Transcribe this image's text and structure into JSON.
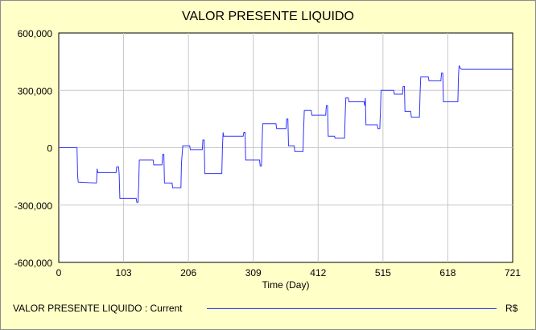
{
  "chart_data": {
    "type": "line",
    "title": "VALOR PRESENTE LIQUIDO",
    "xlabel": "Time (Day)",
    "ylabel": "",
    "xlim": [
      0,
      721
    ],
    "ylim": [
      -600000,
      600000
    ],
    "x_ticks": [
      0,
      103,
      206,
      309,
      412,
      515,
      618,
      721
    ],
    "y_ticks": [
      -600000,
      -300000,
      0,
      300000,
      600000
    ],
    "x_tick_labels": [
      "0",
      "103",
      "206",
      "309",
      "412",
      "515",
      "618",
      "721"
    ],
    "y_tick_labels": [
      "-600,000",
      "-300,000",
      "0",
      "300,000",
      "600,000"
    ],
    "grid": true,
    "legend_position": "bottom",
    "colors": {
      "series": "#3333ff",
      "background": "#ffffc8",
      "plot": "#ffffff",
      "grid": "#c8c8c8"
    },
    "series": [
      {
        "name": "VALOR PRESENTE LIQUIDO : Current",
        "unit": "R$",
        "points": [
          [
            0,
            0
          ],
          [
            29,
            0
          ],
          [
            30,
            -150000
          ],
          [
            31,
            -180000
          ],
          [
            60,
            -185000
          ],
          [
            61,
            -110000
          ],
          [
            62,
            -130000
          ],
          [
            91,
            -130000
          ],
          [
            92,
            -100000
          ],
          [
            95,
            -100000
          ],
          [
            96,
            -140000
          ],
          [
            97,
            -265000
          ],
          [
            123,
            -265000
          ],
          [
            124,
            -285000
          ],
          [
            126,
            -285000
          ],
          [
            127,
            -200000
          ],
          [
            128,
            -65000
          ],
          [
            150,
            -65000
          ],
          [
            151,
            -90000
          ],
          [
            164,
            -90000
          ],
          [
            165,
            -35000
          ],
          [
            167,
            -35000
          ],
          [
            168,
            -185000
          ],
          [
            180,
            -185000
          ],
          [
            181,
            -210000
          ],
          [
            194,
            -210000
          ],
          [
            195,
            -80000
          ],
          [
            197,
            10000
          ],
          [
            208,
            10000
          ],
          [
            209,
            -10000
          ],
          [
            228,
            -10000
          ],
          [
            229,
            40000
          ],
          [
            231,
            40000
          ],
          [
            232,
            -135000
          ],
          [
            259,
            -135000
          ],
          [
            260,
            0
          ],
          [
            261,
            80000
          ],
          [
            262,
            60000
          ],
          [
            293,
            60000
          ],
          [
            294,
            80000
          ],
          [
            296,
            80000
          ],
          [
            297,
            -65000
          ],
          [
            319,
            -65000
          ],
          [
            320,
            -95000
          ],
          [
            322,
            -95000
          ],
          [
            323,
            30000
          ],
          [
            324,
            125000
          ],
          [
            345,
            125000
          ],
          [
            346,
            100000
          ],
          [
            361,
            100000
          ],
          [
            362,
            150000
          ],
          [
            364,
            150000
          ],
          [
            365,
            10000
          ],
          [
            374,
            10000
          ],
          [
            375,
            -20000
          ],
          [
            388,
            -20000
          ],
          [
            389,
            100000
          ],
          [
            390,
            195000
          ],
          [
            401,
            195000
          ],
          [
            402,
            170000
          ],
          [
            424,
            170000
          ],
          [
            425,
            220000
          ],
          [
            427,
            220000
          ],
          [
            428,
            60000
          ],
          [
            438,
            60000
          ],
          [
            439,
            50000
          ],
          [
            454,
            50000
          ],
          [
            455,
            170000
          ],
          [
            456,
            260000
          ],
          [
            460,
            260000
          ],
          [
            461,
            240000
          ],
          [
            485,
            240000
          ],
          [
            486,
            220000
          ],
          [
            487,
            260000
          ],
          [
            488,
            120000
          ],
          [
            506,
            120000
          ],
          [
            507,
            100000
          ],
          [
            510,
            100000
          ],
          [
            511,
            190000
          ],
          [
            512,
            300000
          ],
          [
            532,
            300000
          ],
          [
            533,
            280000
          ],
          [
            546,
            280000
          ],
          [
            547,
            320000
          ],
          [
            549,
            320000
          ],
          [
            550,
            190000
          ],
          [
            559,
            190000
          ],
          [
            560,
            160000
          ],
          [
            573,
            160000
          ],
          [
            574,
            290000
          ],
          [
            575,
            370000
          ],
          [
            587,
            370000
          ],
          [
            588,
            350000
          ],
          [
            607,
            350000
          ],
          [
            608,
            390000
          ],
          [
            610,
            390000
          ],
          [
            611,
            240000
          ],
          [
            634,
            240000
          ],
          [
            635,
            380000
          ],
          [
            636,
            430000
          ],
          [
            638,
            415000
          ],
          [
            640,
            410000
          ],
          [
            721,
            410000
          ]
        ]
      }
    ]
  }
}
